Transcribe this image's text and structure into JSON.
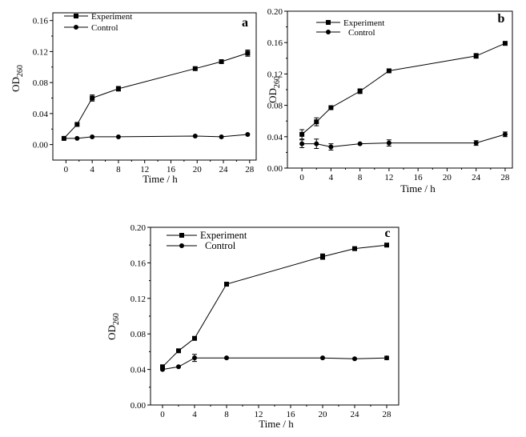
{
  "chart_data": [
    {
      "panel": "a",
      "type": "line",
      "xlabel": "Time / h",
      "ylabel_main": "OD",
      "ylabel_sub": "260",
      "xlim": [
        -2,
        29
      ],
      "ylim": [
        -0.02,
        0.17
      ],
      "xticks": [
        0,
        4,
        8,
        12,
        16,
        20,
        24,
        28
      ],
      "yticks": [
        0.0,
        0.04,
        0.08,
        0.12,
        0.16
      ],
      "ytick_labels": [
        "0.00",
        "0.04",
        "0.08",
        "0.12",
        "0.16"
      ],
      "legend_position": "top-left",
      "series": [
        {
          "name": "Experiment",
          "marker": "square",
          "x": [
            -0.3,
            1.7,
            4,
            8,
            19.7,
            23.7,
            27.7
          ],
          "y": [
            0.008,
            0.026,
            0.06,
            0.072,
            0.098,
            0.107,
            0.118
          ],
          "err": [
            0,
            0,
            0.004,
            0.003,
            0,
            0,
            0.004
          ]
        },
        {
          "name": "Control",
          "marker": "circle",
          "x": [
            -0.3,
            1.7,
            4,
            8,
            19.7,
            23.7,
            27.7
          ],
          "y": [
            0.008,
            0.008,
            0.01,
            0.01,
            0.011,
            0.01,
            0.013
          ],
          "err": [
            0,
            0,
            0,
            0,
            0,
            0,
            0
          ]
        }
      ]
    },
    {
      "panel": "b",
      "type": "line",
      "xlabel": "Time / h",
      "ylabel_main": "OD",
      "ylabel_sub": "260",
      "xlim": [
        -2,
        29
      ],
      "ylim": [
        0,
        0.2
      ],
      "xticks": [
        0,
        4,
        8,
        12,
        16,
        20,
        24,
        28
      ],
      "yticks": [
        0.0,
        0.04,
        0.08,
        0.12,
        0.16,
        0.2
      ],
      "ytick_labels": [
        "0.00",
        "0.04",
        "0.08",
        "0.12",
        "0.16",
        "0.20"
      ],
      "legend_position": "top-left",
      "series": [
        {
          "name": "Experiment",
          "marker": "square",
          "x": [
            0,
            2,
            4,
            8,
            12,
            24,
            28
          ],
          "y": [
            0.043,
            0.059,
            0.077,
            0.098,
            0.124,
            0.143,
            0.159
          ],
          "err": [
            0.006,
            0.005,
            0,
            0.003,
            0,
            0.003,
            0
          ]
        },
        {
          "name": "Control",
          "marker": "circle",
          "x": [
            0,
            2,
            4,
            8,
            12,
            24,
            28
          ],
          "y": [
            0.031,
            0.031,
            0.027,
            0.031,
            0.032,
            0.032,
            0.043
          ],
          "err": [
            0.005,
            0.006,
            0.004,
            0,
            0.004,
            0.003,
            0.003
          ]
        }
      ]
    },
    {
      "panel": "c",
      "type": "line",
      "xlabel": "Time / h",
      "ylabel_main": "OD",
      "ylabel_sub": "260",
      "xlim": [
        -1.5,
        29.5
      ],
      "ylim": [
        0,
        0.2
      ],
      "xticks": [
        0,
        4,
        8,
        12,
        16,
        20,
        24,
        28
      ],
      "yticks": [
        0.0,
        0.04,
        0.08,
        0.12,
        0.16,
        0.2
      ],
      "ytick_labels": [
        "0.00",
        "0.04",
        "0.08",
        "0.12",
        "0.16",
        "0.20"
      ],
      "legend_position": "top-left",
      "series": [
        {
          "name": "Experiment",
          "marker": "square",
          "x": [
            0,
            2,
            4,
            8,
            20,
            24,
            28
          ],
          "y": [
            0.043,
            0.061,
            0.075,
            0.136,
            0.167,
            0.176,
            0.18
          ],
          "err": [
            0,
            0,
            0,
            0,
            0.003,
            0,
            0
          ]
        },
        {
          "name": "Control",
          "marker": "circle",
          "x": [
            0,
            2,
            4,
            8,
            20,
            24,
            28
          ],
          "y": [
            0.04,
            0.043,
            0.053,
            0.053,
            0.053,
            0.052,
            0.053
          ],
          "err": [
            0,
            0,
            0.004,
            0,
            0,
            0,
            0.002
          ]
        }
      ]
    }
  ]
}
